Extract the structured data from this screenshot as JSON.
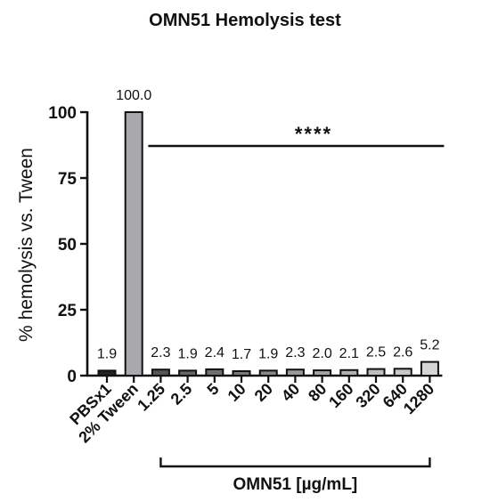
{
  "chart_data": {
    "type": "bar",
    "title": "OMN51 Hemolysis test",
    "xlabel": "",
    "ylabel": "% hemolysis vs. Tween",
    "ylim": [
      0,
      100
    ],
    "yticks": [
      0,
      25,
      50,
      75,
      100
    ],
    "grid": false,
    "categories": [
      "PBSx1",
      "2% Tween",
      "1.25",
      "2.5",
      "5",
      "10",
      "20",
      "40",
      "80",
      "160",
      "320",
      "640",
      "1280"
    ],
    "values": [
      1.9,
      100.0,
      2.3,
      1.9,
      2.4,
      1.7,
      1.9,
      2.3,
      2.0,
      2.1,
      2.5,
      2.6,
      5.2
    ],
    "data_labels": [
      "1.9",
      "100.0",
      "2.3",
      "1.9",
      "2.4",
      "1.7",
      "1.9",
      "2.3",
      "2.0",
      "2.1",
      "2.5",
      "2.6",
      "5.2"
    ],
    "bar_colors": [
      "#222222",
      "#a9a9ad",
      "#555555",
      "#666666",
      "#6e6e6e",
      "#777777",
      "#888888",
      "#999999",
      "#a4a4a4",
      "#b0b0b0",
      "#bdbdbd",
      "#c8c8c8",
      "#d6d6d6"
    ],
    "significance": {
      "label": "****",
      "from_category": "1.25",
      "to_category": "1280"
    },
    "group_bracket": {
      "label": "OMN51 [µg/mL]",
      "from_category": "1.25",
      "to_category": "1280"
    }
  }
}
